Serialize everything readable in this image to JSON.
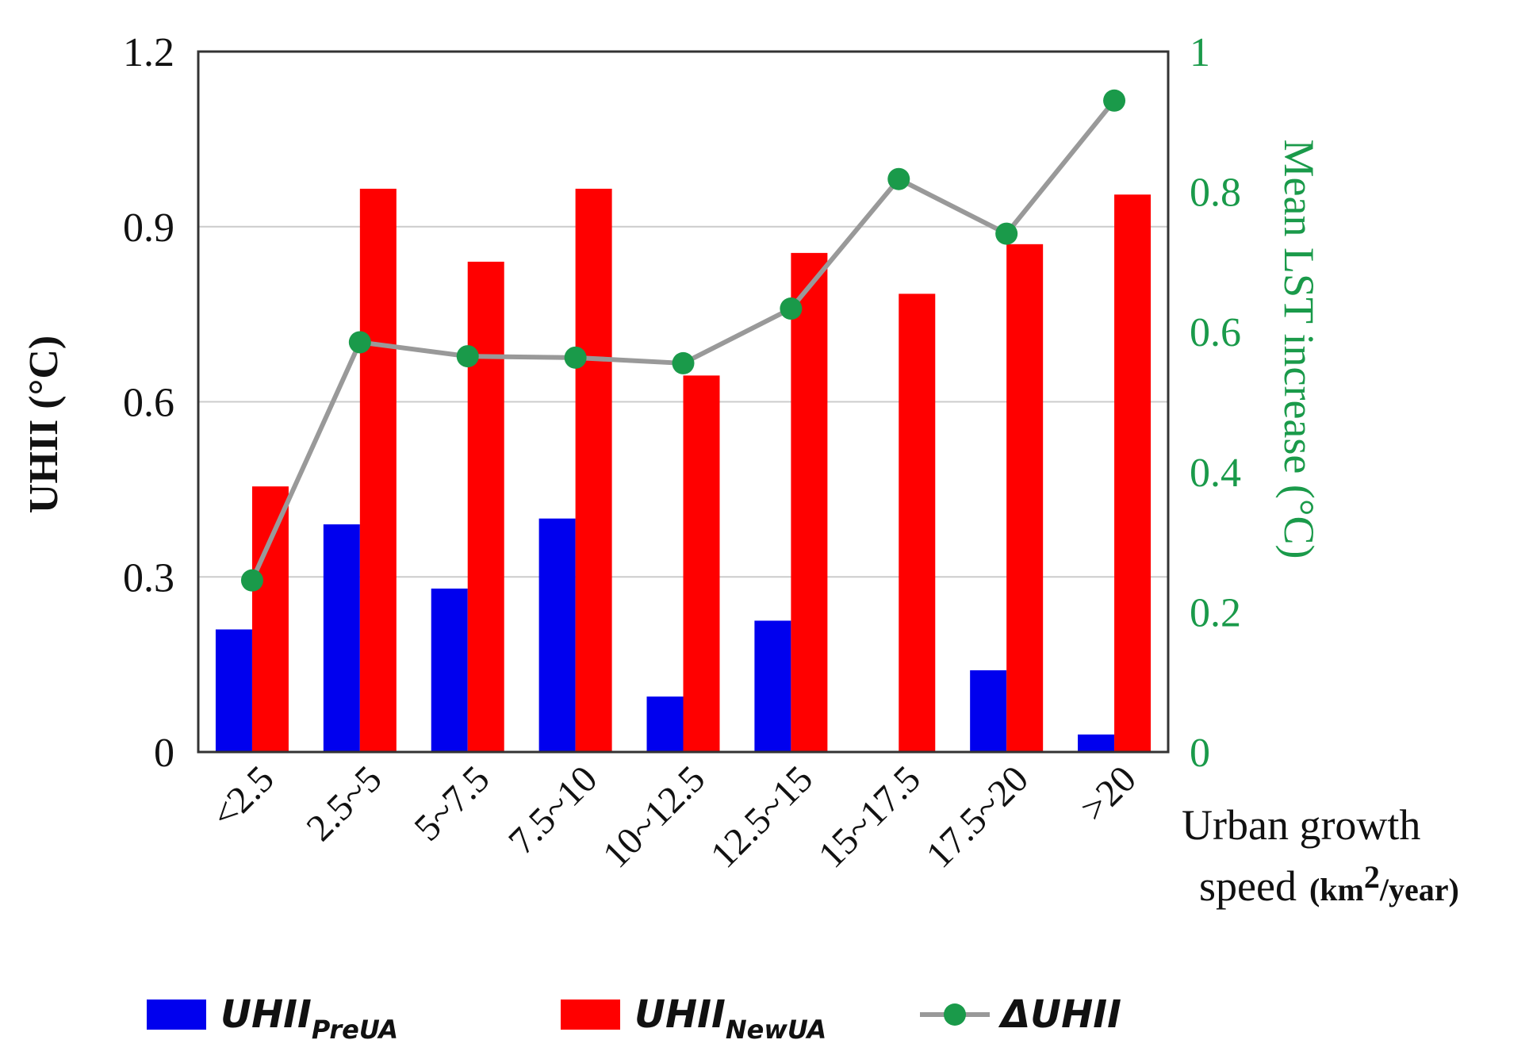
{
  "chart_data": {
    "type": "bar",
    "title": "",
    "categories": [
      "<2.5",
      "2.5~5",
      "5~7.5",
      "7.5~10",
      "10~12.5",
      "12.5~15",
      "15~17.5",
      "17.5~20",
      ">20"
    ],
    "series": [
      {
        "name": "UHII_PreUA",
        "legend_main": "UHII",
        "legend_sub": "PreUA",
        "axis": "left",
        "kind": "bar",
        "color": "#0000ee",
        "values": [
          0.21,
          0.39,
          0.28,
          0.4,
          0.095,
          0.225,
          0.0,
          0.14,
          0.03
        ]
      },
      {
        "name": "UHII_NewUA",
        "legend_main": "UHII",
        "legend_sub": "NewUA",
        "axis": "left",
        "kind": "bar",
        "color": "#ff0000",
        "values": [
          0.455,
          0.965,
          0.84,
          0.965,
          0.645,
          0.855,
          0.785,
          0.87,
          0.955
        ]
      },
      {
        "name": "ΔUHII",
        "legend_main": "ΔUHII",
        "legend_sub": "",
        "axis": "right",
        "kind": "line",
        "color": "#1a9a4a",
        "line_color": "#999999",
        "values": [
          0.245,
          0.585,
          0.565,
          0.563,
          0.555,
          0.633,
          0.818,
          0.74,
          0.93
        ]
      }
    ],
    "y_left": {
      "label": "UHII (°C)",
      "lim": [
        0,
        1.2
      ],
      "ticks": [
        "0",
        "0.3",
        "0.6",
        "0.9",
        "1.2"
      ],
      "tick_values": [
        0,
        0.3,
        0.6,
        0.9,
        1.2
      ]
    },
    "y_right": {
      "label": "Mean LST increase (°C)",
      "lim": [
        0,
        1
      ],
      "ticks": [
        "0",
        "0.2",
        "0.4",
        "0.6",
        "0.8",
        "1"
      ],
      "tick_values": [
        0,
        0.2,
        0.4,
        0.6,
        0.8,
        1
      ]
    },
    "x_label_line1": "Urban growth",
    "x_label_line2": "speed",
    "x_unit_pre": "(km",
    "x_unit_sup": "2",
    "x_unit_post": "/year)",
    "grid": true,
    "legend_position": "bottom"
  }
}
